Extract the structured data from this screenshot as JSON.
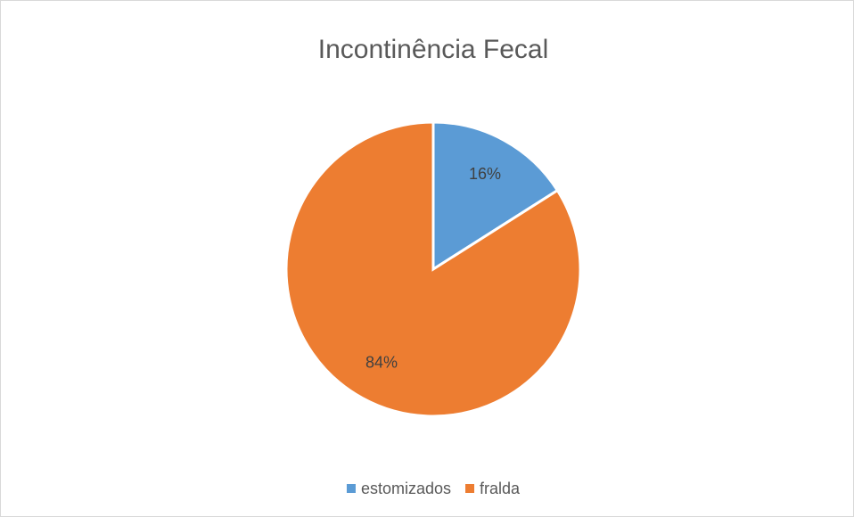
{
  "chart_data": {
    "type": "pie",
    "title": "Incontinência Fecal",
    "categories": [
      "estomizados",
      "fralda"
    ],
    "values": [
      16,
      84
    ],
    "value_labels": [
      "16%",
      "84%"
    ],
    "colors": [
      "#5b9bd5",
      "#ed7d31"
    ],
    "legend": "bottom"
  }
}
